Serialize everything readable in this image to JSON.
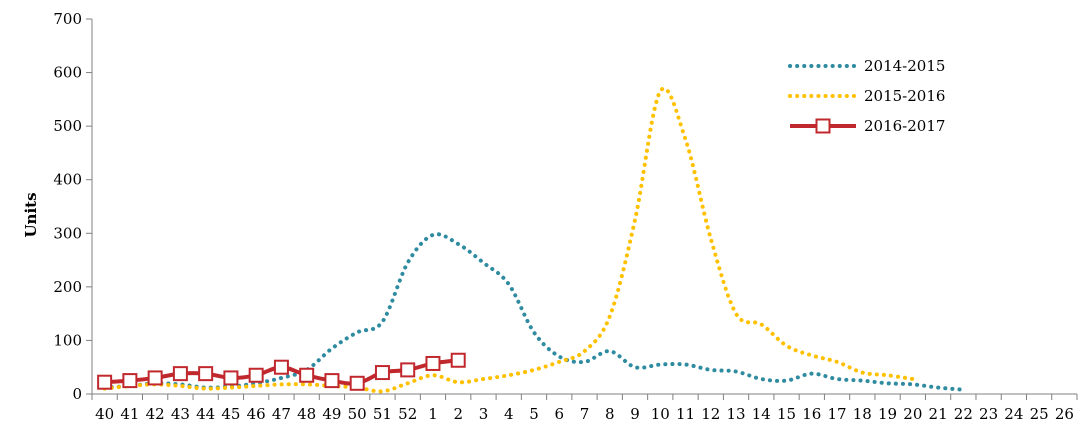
{
  "chart_data": {
    "type": "line",
    "title": "",
    "xlabel": "",
    "ylabel": "Units",
    "ylim": [
      0,
      700
    ],
    "yticks": [
      0,
      100,
      200,
      300,
      400,
      500,
      600,
      700
    ],
    "grid": false,
    "legend_position": "top-right",
    "categories": [
      "40",
      "41",
      "42",
      "43",
      "44",
      "45",
      "46",
      "47",
      "48",
      "49",
      "50",
      "51",
      "52",
      "1",
      "2",
      "3",
      "4",
      "5",
      "6",
      "7",
      "8",
      "9",
      "10",
      "11",
      "12",
      "13",
      "14",
      "15",
      "16",
      "17",
      "18",
      "19",
      "20",
      "21",
      "22",
      "23",
      "24",
      "25",
      "26"
    ],
    "series": [
      {
        "name": "2014-2015",
        "color": "#2E8BA0",
        "style": "dotted",
        "values": [
          12,
          15,
          20,
          18,
          12,
          14,
          20,
          30,
          45,
          85,
          115,
          135,
          245,
          297,
          280,
          245,
          205,
          115,
          70,
          60,
          80,
          50,
          55,
          55,
          45,
          42,
          28,
          25,
          38,
          28,
          25,
          20,
          18,
          12,
          8,
          null,
          null,
          null,
          null
        ]
      },
      {
        "name": "2015-2016",
        "color": "#FFC000",
        "style": "dotted",
        "values": [
          10,
          15,
          18,
          15,
          10,
          12,
          15,
          18,
          18,
          15,
          12,
          5,
          20,
          35,
          22,
          28,
          35,
          45,
          60,
          80,
          145,
          325,
          565,
          475,
          290,
          150,
          130,
          90,
          72,
          60,
          40,
          35,
          28,
          null,
          null,
          null,
          null,
          null,
          null
        ]
      },
      {
        "name": "2016-2017",
        "color": "#C0282D",
        "style": "solid-square-markers",
        "values": [
          22,
          25,
          30,
          38,
          38,
          30,
          35,
          50,
          35,
          25,
          20,
          40,
          45,
          57,
          63,
          null,
          null,
          null,
          null,
          null,
          null,
          null,
          null,
          null,
          null,
          null,
          null,
          null,
          null,
          null,
          null,
          null,
          null,
          null,
          null,
          null,
          null,
          null,
          null
        ]
      }
    ]
  }
}
